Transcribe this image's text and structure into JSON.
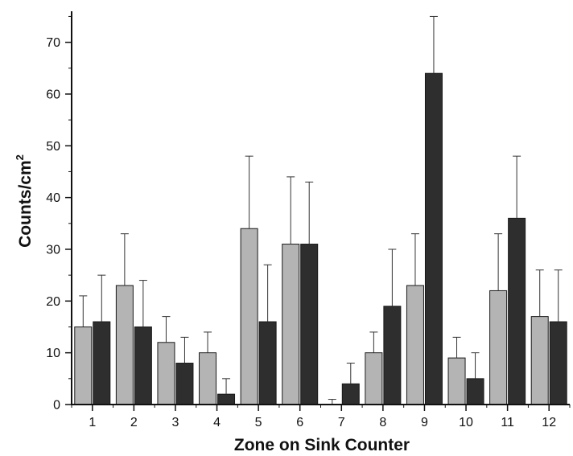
{
  "chart_data": {
    "type": "bar",
    "xlabel": "Zone on Sink Counter",
    "ylabel_main": "Counts/cm",
    "ylabel_sup": "2",
    "categories": [
      "1",
      "2",
      "3",
      "4",
      "5",
      "6",
      "7",
      "8",
      "9",
      "10",
      "11",
      "12"
    ],
    "series": [
      {
        "color": "#b4b4b4",
        "values": [
          15,
          23,
          12,
          10,
          34,
          31,
          0,
          10,
          23,
          9,
          22,
          17
        ],
        "error_upper": [
          21,
          33,
          17,
          14,
          48,
          44,
          1,
          14,
          33,
          13,
          33,
          26
        ]
      },
      {
        "color": "#2e2e2e",
        "values": [
          16,
          15,
          8,
          2,
          16,
          31,
          4,
          19,
          64,
          5,
          36,
          16
        ],
        "error_upper": [
          25,
          24,
          13,
          5,
          27,
          43,
          8,
          30,
          75,
          10,
          48,
          26
        ]
      }
    ],
    "ylim": [
      0,
      76
    ],
    "yticks": [
      0,
      10,
      20,
      30,
      40,
      50,
      60,
      70
    ],
    "ytick_labels": [
      "0",
      "10",
      "20",
      "30",
      "40",
      "50",
      "60",
      "70"
    ],
    "grid": false,
    "legend": "none"
  }
}
